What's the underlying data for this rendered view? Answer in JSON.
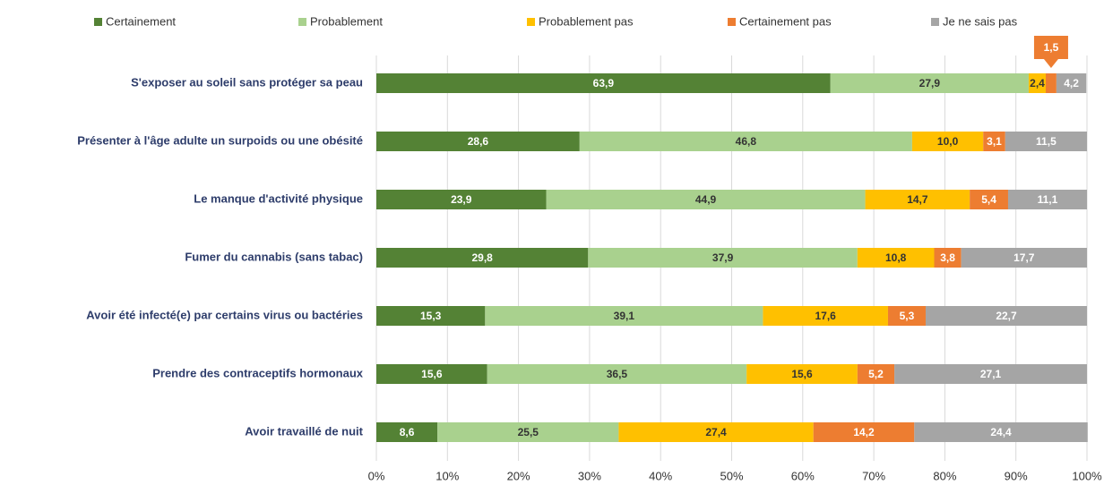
{
  "chart_data": {
    "type": "stacked_bar_horizontal",
    "categories": [
      "S'exposer au soleil sans protéger sa peau",
      "Présenter à l'âge adulte un surpoids ou une obésité",
      "Le manque d'activité physique",
      "Fumer du cannabis (sans tabac)",
      "Avoir été infecté(e) par certains virus ou bactéries",
      "Prendre des contraceptifs hormonaux",
      "Avoir travaillé de nuit"
    ],
    "series": [
      {
        "name": "Certainement",
        "color": "#548235",
        "values": [
          63.9,
          28.6,
          23.9,
          29.8,
          15.3,
          15.6,
          8.6
        ],
        "value_labels": [
          "63,9",
          "28,6",
          "23,9",
          "29,8",
          "15,3",
          "15,6",
          "8,6"
        ]
      },
      {
        "name": "Probablement",
        "color": "#a9d18e",
        "values": [
          27.9,
          46.8,
          44.9,
          37.9,
          39.1,
          36.5,
          25.5
        ],
        "value_labels": [
          "27,9",
          "46,8",
          "44,9",
          "37,9",
          "39,1",
          "36,5",
          "25,5"
        ]
      },
      {
        "name": "Probablement pas",
        "color": "#ffc000",
        "values": [
          2.4,
          10.0,
          14.7,
          10.8,
          17.6,
          15.6,
          27.4
        ],
        "value_labels": [
          "2,4",
          "10,0",
          "14,7",
          "10,8",
          "17,6",
          "15,6",
          "27,4"
        ]
      },
      {
        "name": "Certainement pas",
        "color": "#ed7d31",
        "values": [
          1.5,
          3.1,
          5.4,
          3.8,
          5.3,
          5.2,
          14.2
        ],
        "value_labels": [
          "1,5",
          "3,1",
          "5,4",
          "3,8",
          "5,3",
          "5,2",
          "14,2"
        ]
      },
      {
        "name": "Je ne sais pas",
        "color": "#a5a5a5",
        "values": [
          4.2,
          11.5,
          11.1,
          17.7,
          22.7,
          27.1,
          24.4
        ],
        "value_labels": [
          "4,2",
          "11,5",
          "11,1",
          "17,7",
          "22,7",
          "27,1",
          "24,4"
        ]
      }
    ],
    "xlim": [
      0,
      100
    ],
    "xticks": [
      {
        "value": 0,
        "label": "0%"
      },
      {
        "value": 10,
        "label": "10%"
      },
      {
        "value": 20,
        "label": "20%"
      },
      {
        "value": 30,
        "label": "30%"
      },
      {
        "value": 40,
        "label": "40%"
      },
      {
        "value": 50,
        "label": "50%"
      },
      {
        "value": 60,
        "label": "60%"
      },
      {
        "value": 70,
        "label": "70%"
      },
      {
        "value": 80,
        "label": "80%"
      },
      {
        "value": 90,
        "label": "90%"
      },
      {
        "value": 100,
        "label": "100%"
      }
    ],
    "grid": true,
    "legend": "top"
  }
}
